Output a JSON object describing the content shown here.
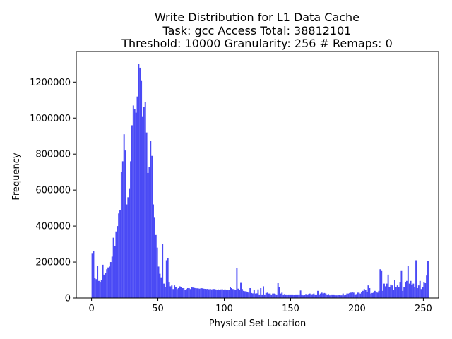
{
  "chart_data": {
    "type": "bar",
    "title_lines": [
      "Write Distribution for L1 Data Cache",
      "Task: gcc Access Total: 38812101",
      "Threshold: 10000 Granularity: 256 # Remaps: 0"
    ],
    "xlabel": "Physical Set Location",
    "ylabel": "Frequency",
    "xlim": [
      -11.5,
      261.5
    ],
    "ylim": [
      0,
      1370000
    ],
    "x_ticks": [
      0,
      50,
      100,
      150,
      200,
      250
    ],
    "y_ticks": [
      0,
      200000,
      400000,
      600000,
      800000,
      1000000,
      1200000
    ],
    "bar_color": "#4a4af5",
    "x_start": 0,
    "values": [
      250000,
      260000,
      110000,
      105000,
      180000,
      95000,
      90000,
      100000,
      185000,
      130000,
      140000,
      160000,
      170000,
      175000,
      200000,
      230000,
      335000,
      290000,
      370000,
      400000,
      470000,
      490000,
      700000,
      760000,
      910000,
      820000,
      520000,
      560000,
      610000,
      760000,
      960000,
      1070000,
      1050000,
      1030000,
      1120000,
      1300000,
      1280000,
      1210000,
      1010000,
      1060000,
      1090000,
      920000,
      695000,
      730000,
      875000,
      790000,
      520000,
      450000,
      350000,
      280000,
      175000,
      135000,
      115000,
      300000,
      80000,
      60000,
      210000,
      220000,
      90000,
      65000,
      70000,
      50000,
      70000,
      60000,
      50000,
      55000,
      65000,
      60000,
      55000,
      55000,
      45000,
      50000,
      55000,
      55000,
      50000,
      60000,
      58000,
      56000,
      55000,
      54000,
      53000,
      52000,
      55000,
      54000,
      52000,
      51000,
      50000,
      51000,
      49000,
      50000,
      48000,
      50000,
      50000,
      48000,
      47000,
      48000,
      47000,
      48000,
      49000,
      47000,
      48000,
      46000,
      47000,
      46000,
      60000,
      55000,
      50000,
      48000,
      47000,
      168000,
      52000,
      47000,
      88000,
      50000,
      40000,
      38000,
      37000,
      35000,
      30000,
      55000,
      28000,
      26000,
      45000,
      25000,
      26000,
      48000,
      20000,
      55000,
      20000,
      65000,
      20000,
      28000,
      30000,
      25000,
      25000,
      20000,
      25000,
      25000,
      22000,
      20000,
      85000,
      60000,
      25000,
      30000,
      20000,
      22000,
      20000,
      18000,
      20000,
      20000,
      20000,
      20000,
      18000,
      20000,
      20000,
      20000,
      20000,
      42000,
      20000,
      15000,
      18000,
      22000,
      20000,
      22000,
      25000,
      20000,
      22000,
      25000,
      20000,
      20000,
      40000,
      20000,
      25000,
      30000,
      25000,
      28000,
      25000,
      20000,
      22000,
      15000,
      20000,
      20000,
      20000,
      15000,
      15000,
      15000,
      18000,
      15000,
      15000,
      25000,
      15000,
      20000,
      25000,
      25000,
      28000,
      30000,
      35000,
      30000,
      20000,
      22000,
      30000,
      30000,
      25000,
      35000,
      40000,
      50000,
      45000,
      35000,
      70000,
      55000,
      25000,
      28000,
      30000,
      40000,
      35000,
      30000,
      40000,
      160000,
      150000,
      40000,
      80000,
      65000,
      80000,
      130000,
      60000,
      75000,
      70000,
      45000,
      100000,
      60000,
      70000,
      60000,
      90000,
      150000,
      40000,
      60000,
      90000,
      95000,
      180000,
      80000,
      95000,
      75000,
      80000,
      60000,
      210000,
      55000,
      70000,
      95000,
      50000,
      60000,
      90000,
      85000,
      125000,
      205000
    ]
  }
}
